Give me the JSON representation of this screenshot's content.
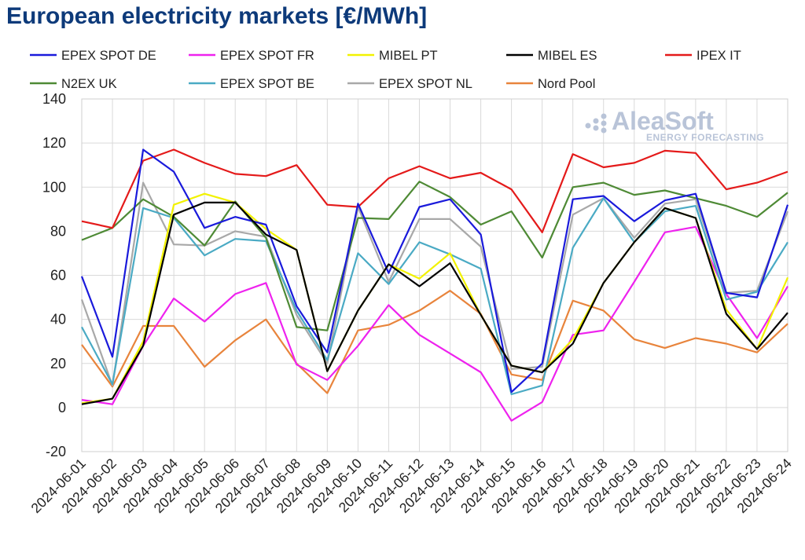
{
  "chart_data": {
    "type": "line",
    "title": "European electricity markets [€/MWh]",
    "xlabel": "",
    "ylabel": "",
    "ylim": [
      -20,
      140
    ],
    "yticks": [
      -20,
      0,
      20,
      40,
      60,
      80,
      100,
      120,
      140
    ],
    "grid": true,
    "legend_position": "top",
    "x": [
      "2024-06-01",
      "2024-06-02",
      "2024-06-03",
      "2024-06-04",
      "2024-06-05",
      "2024-06-06",
      "2024-06-07",
      "2024-06-08",
      "2024-06-09",
      "2024-06-10",
      "2024-06-11",
      "2024-06-12",
      "2024-06-13",
      "2024-06-14",
      "2024-06-15",
      "2024-06-16",
      "2024-06-17",
      "2024-06-18",
      "2024-06-19",
      "2024-06-20",
      "2024-06-21",
      "2024-06-22",
      "2024-06-23",
      "2024-06-24"
    ],
    "series": [
      {
        "name": "EPEX SPOT DE",
        "color": "#1a1adb",
        "values": [
          59.5,
          23,
          117,
          107,
          81.5,
          86.5,
          83,
          46,
          25,
          92.5,
          61,
          91,
          94.5,
          78.5,
          7,
          20,
          94.5,
          96,
          84.5,
          94,
          97,
          52,
          50,
          92
        ]
      },
      {
        "name": "EPEX SPOT FR",
        "color": "#ee22ee",
        "values": [
          3.5,
          1.5,
          28,
          49.5,
          39,
          51.5,
          56.5,
          19.5,
          12.5,
          28,
          46.5,
          33,
          24.5,
          16,
          -6,
          2.5,
          33,
          35,
          57,
          79.5,
          82,
          51.5,
          31.5,
          55
        ]
      },
      {
        "name": "MIBEL PT",
        "color": "#f2f200",
        "values": [
          2,
          4,
          30,
          92,
          97,
          93,
          81,
          71.5,
          16.5,
          44,
          65,
          58.5,
          70,
          42,
          19,
          16,
          31,
          56.5,
          75,
          90.5,
          86,
          44.5,
          26.5,
          59
        ]
      },
      {
        "name": "MIBEL ES",
        "color": "#000000",
        "values": [
          1.5,
          4,
          28,
          87.5,
          93,
          93,
          78.5,
          71.5,
          16.5,
          44,
          65,
          55,
          65.5,
          42,
          19,
          16,
          29,
          56.5,
          75,
          90.5,
          86,
          42.5,
          26.5,
          43
        ]
      },
      {
        "name": "IPEX IT",
        "color": "#e41a1a",
        "values": [
          84.5,
          81.5,
          112,
          117,
          111,
          106,
          105,
          110,
          92,
          91,
          104,
          109.5,
          104,
          106.5,
          99,
          79.5,
          115,
          109,
          111,
          116.5,
          115.5,
          99,
          102,
          107
        ]
      },
      {
        "name": "N2EX UK",
        "color": "#4e8a35",
        "values": [
          76,
          81.5,
          94.5,
          86.5,
          73.5,
          93.5,
          77,
          36.5,
          35,
          86,
          85.5,
          102.5,
          95.5,
          83,
          89,
          68,
          100,
          102,
          96.5,
          98.5,
          95,
          91.5,
          86.5,
          97.5
        ]
      },
      {
        "name": "EPEX SPOT BE",
        "color": "#4aaac4",
        "values": [
          36.5,
          10.5,
          90.5,
          86,
          69,
          76.5,
          75.5,
          44,
          21.5,
          70,
          56,
          75,
          69.5,
          63,
          6,
          10,
          72.5,
          95,
          75,
          89,
          91.5,
          49,
          52.5,
          75
        ]
      },
      {
        "name": "EPEX SPOT NL",
        "color": "#a8a8a8",
        "values": [
          49,
          10,
          102,
          74,
          73.5,
          80,
          77.5,
          42,
          20,
          91,
          57,
          85.5,
          85.5,
          73,
          17.5,
          18.5,
          87.5,
          95,
          77,
          92.5,
          94.5,
          52,
          53,
          89
        ]
      },
      {
        "name": "Nord Pool",
        "color": "#e8843c",
        "values": [
          28.5,
          9.5,
          37,
          37,
          18.5,
          30.5,
          40,
          20,
          6.5,
          35,
          37.5,
          44,
          53,
          42.5,
          15,
          12.5,
          48.5,
          44,
          31,
          27,
          31.5,
          29,
          25,
          38
        ]
      }
    ]
  },
  "logo": {
    "name": "AleaSoft",
    "tagline": "ENERGY FORECASTING"
  }
}
